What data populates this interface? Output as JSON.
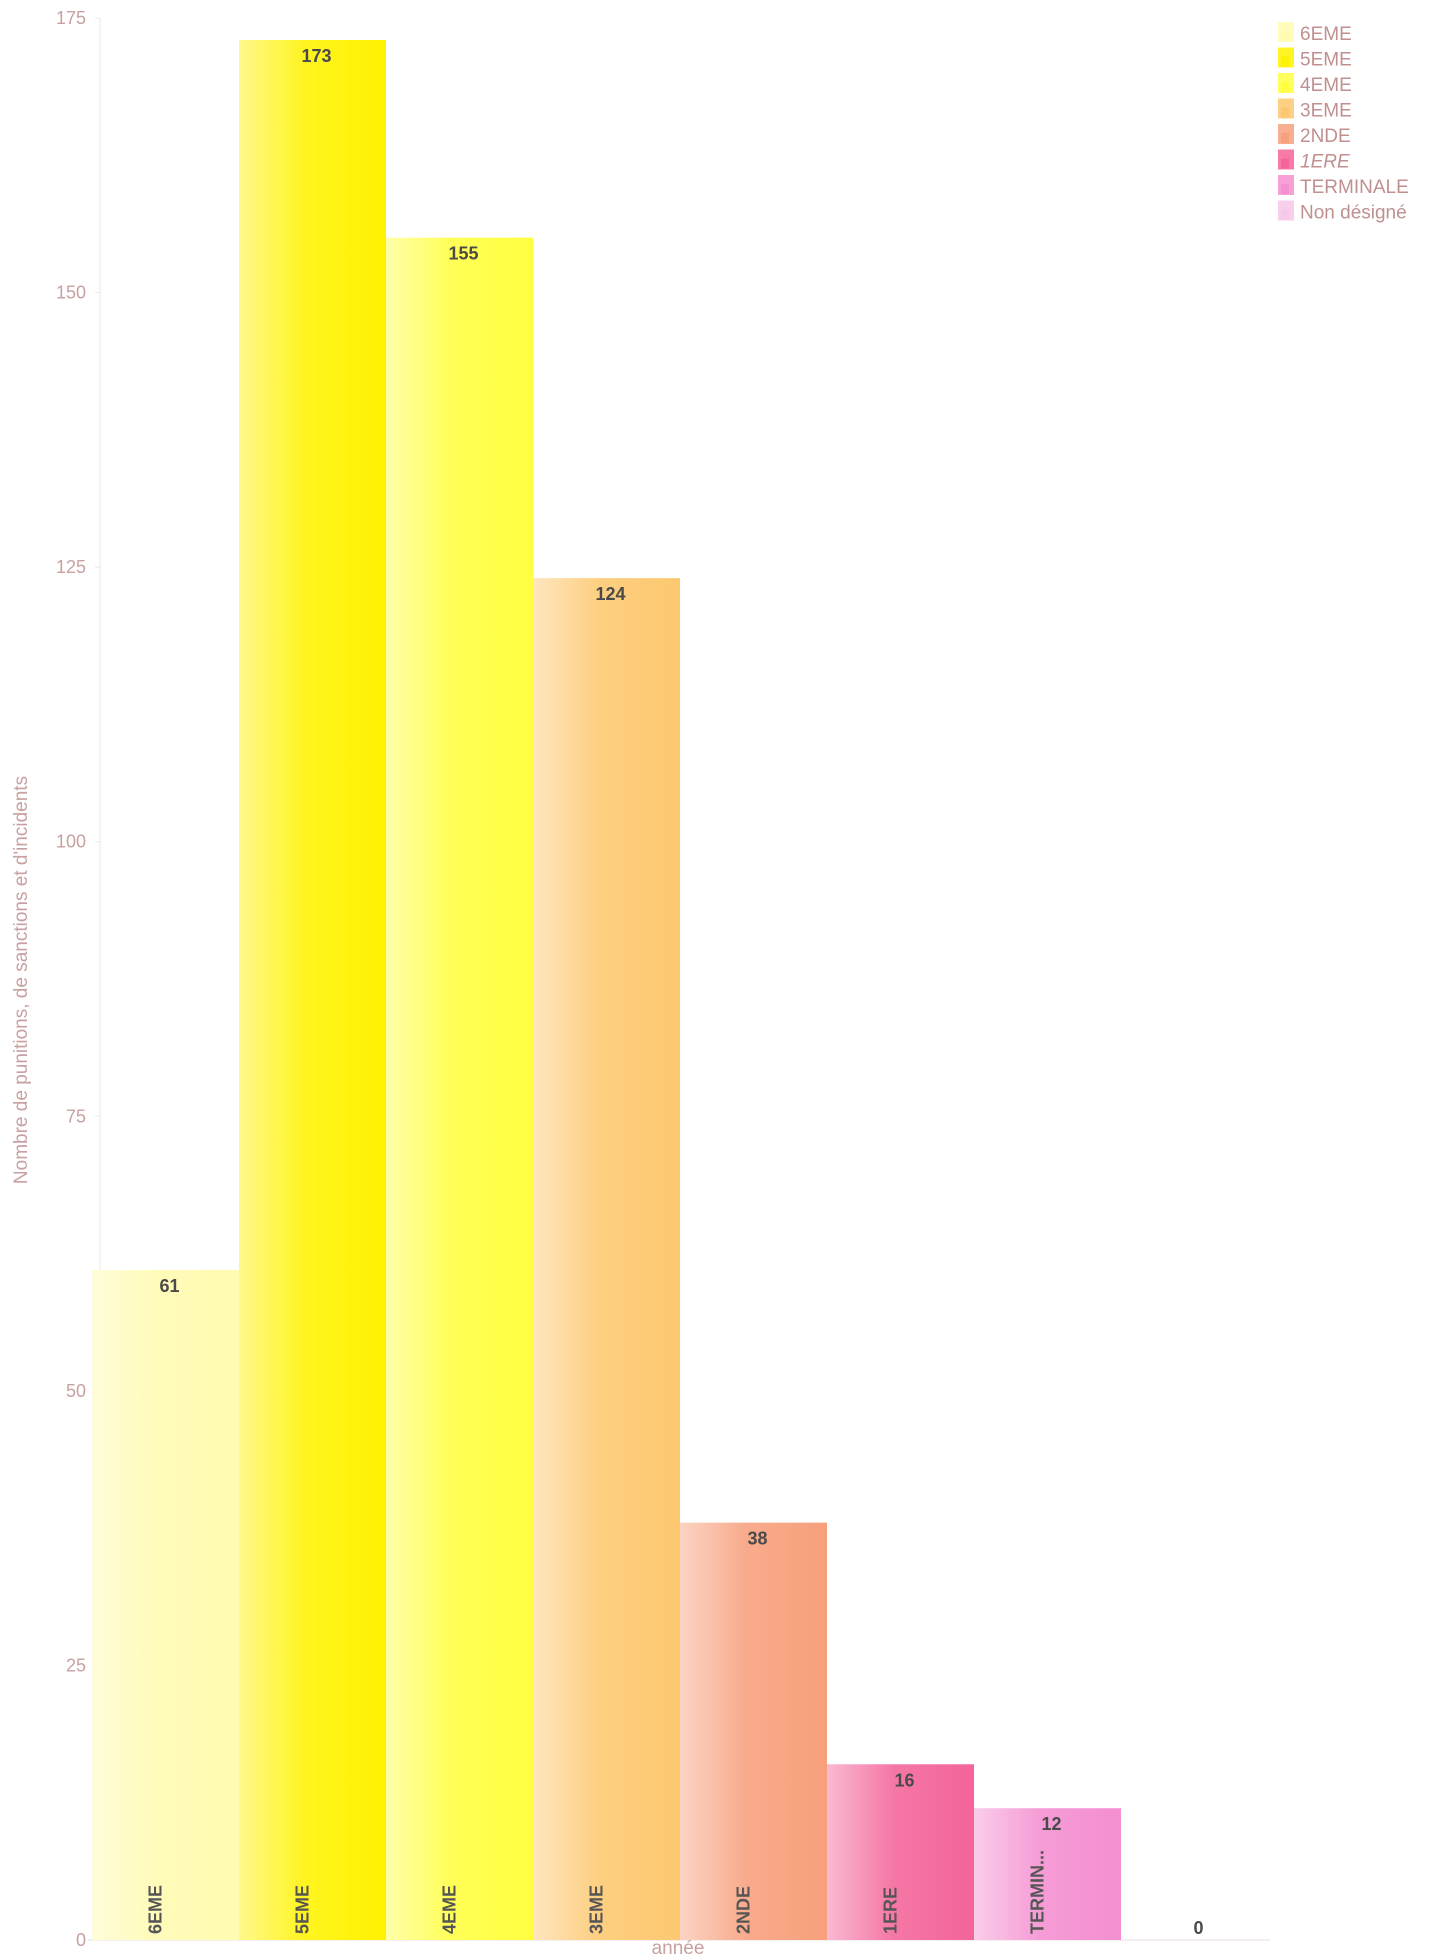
{
  "chart_data": {
    "type": "bar",
    "categories": [
      "6EME",
      "5EME",
      "4EME",
      "3EME",
      "2NDE",
      "1ERE",
      "TERMINALE",
      "Non désigné"
    ],
    "category_axis_labels": [
      "6EME",
      "5EME",
      "4EME",
      "3EME",
      "2NDE",
      "1ERE",
      "TERMIN...",
      ""
    ],
    "values": [
      61,
      173,
      155,
      124,
      38,
      16,
      12,
      0
    ],
    "data_labels": [
      "61",
      "173",
      "155",
      "124",
      "38",
      "16",
      "12",
      "0"
    ],
    "colors": [
      "#fffbb0",
      "#fff200",
      "#ffff40",
      "#fdc870",
      "#f7a07c",
      "#f4649a",
      "#f48fd0",
      "#f8c8e8"
    ],
    "title": "",
    "xlabel": "année",
    "ylabel": "Nombre de punitions, de sanctions et d'incidents",
    "ylim": [
      0,
      175
    ],
    "yticks": [
      0,
      25,
      50,
      75,
      100,
      125,
      150,
      175
    ],
    "ytick_labels": [
      "0",
      "25",
      "50",
      "75",
      "100",
      "125",
      "150",
      "175"
    ],
    "grid": false,
    "legend": {
      "placement": "top-right",
      "entries": [
        "6EME",
        "5EME",
        "4EME",
        "3EME",
        "2NDE",
        "1ERE",
        "TERMINALE",
        "Non désigné"
      ]
    }
  }
}
